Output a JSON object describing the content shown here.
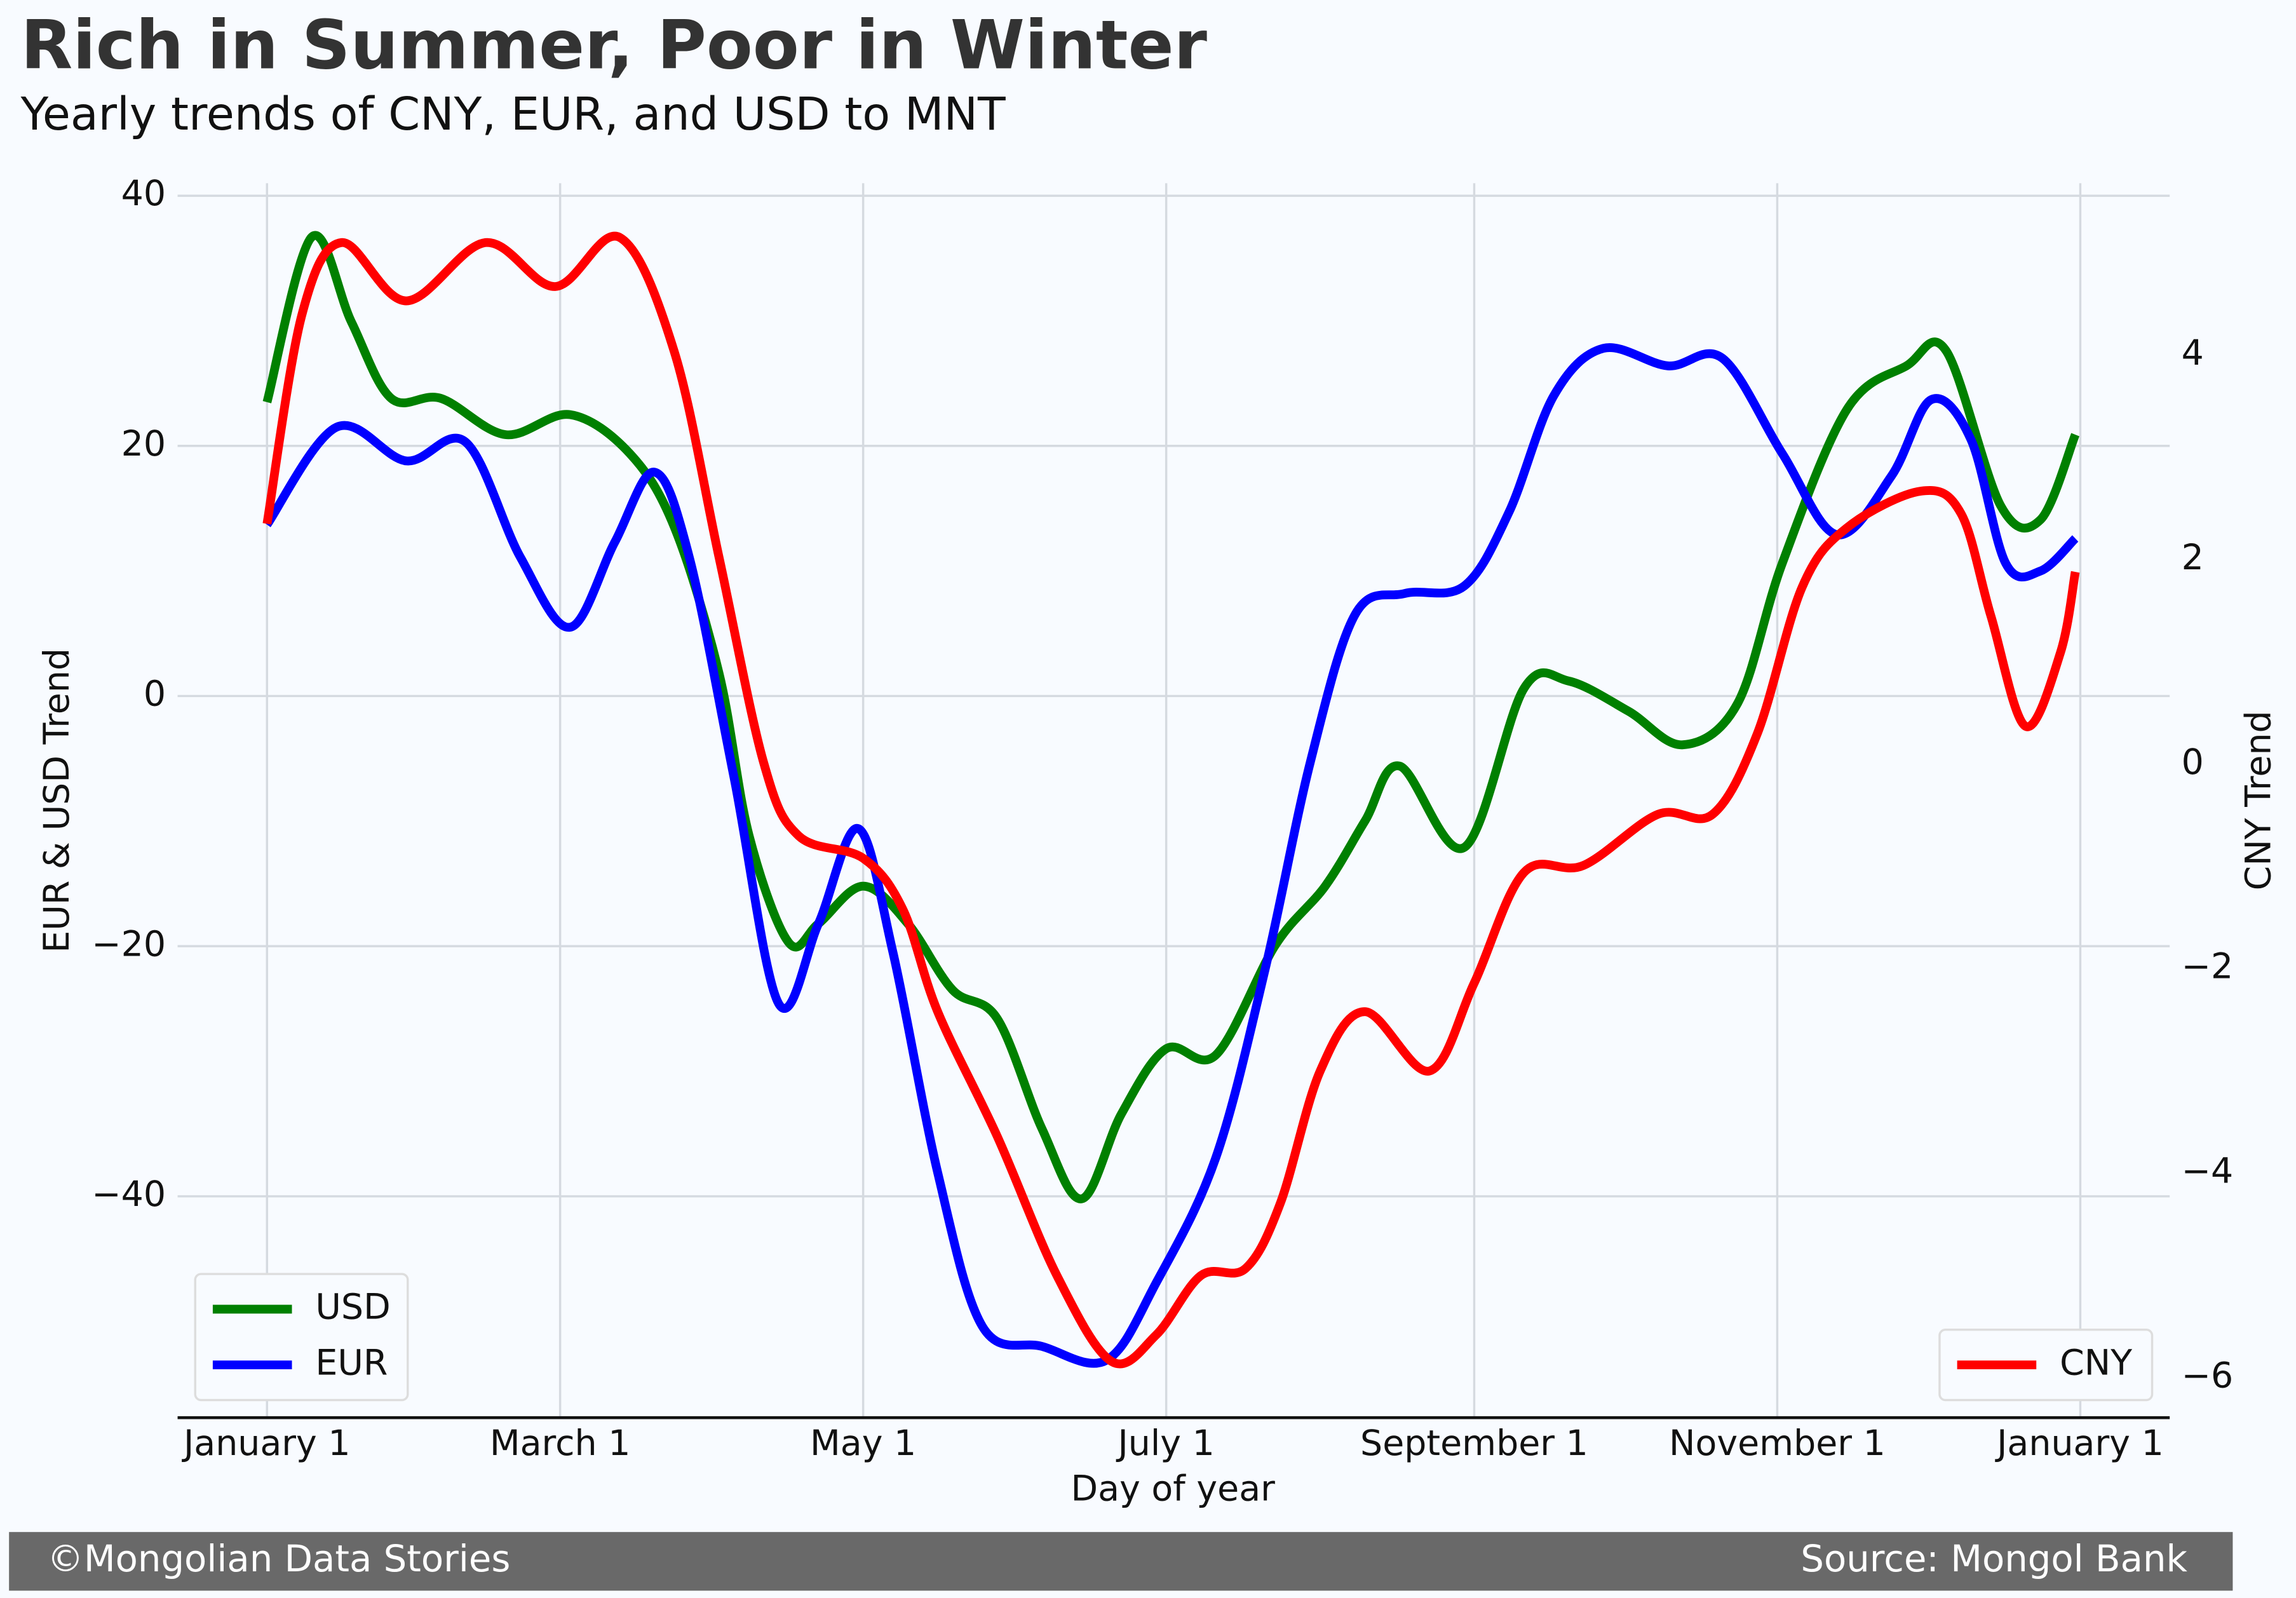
{
  "chart_data": {
    "type": "line",
    "title": "Rich in Summer, Poor in Winter",
    "subtitle": "Yearly trends of CNY, EUR, and USD to MNT",
    "xlabel": "Day of year",
    "ylabel": "EUR & USD Trend",
    "y2label": "CNY Trend",
    "footer_left": "©Mongolian Data Stories",
    "footer_right": "Source: Mongol Bank",
    "xlim": [
      -18,
      383
    ],
    "xticks": [
      {
        "value": 0,
        "label": "January 1"
      },
      {
        "value": 59,
        "label": "March 1"
      },
      {
        "value": 120,
        "label": "May 1"
      },
      {
        "value": 181,
        "label": "July 1"
      },
      {
        "value": 243,
        "label": "September 1"
      },
      {
        "value": 304,
        "label": "November 1"
      },
      {
        "value": 365,
        "label": "January 1"
      }
    ],
    "ylim": [
      -57.7,
      41
    ],
    "yticks": [
      {
        "value": -40,
        "label": "−40"
      },
      {
        "value": -20,
        "label": "−20"
      },
      0,
      20,
      40
    ],
    "y2lim": [
      -6.39,
      5.68
    ],
    "y2ticks": [
      {
        "value": -6,
        "label": "−6"
      },
      {
        "value": -4,
        "label": "−4"
      },
      {
        "value": -2,
        "label": "−2"
      },
      0,
      2,
      4
    ],
    "grid": true,
    "legend": "lower left",
    "legend2": "lower right",
    "series": [
      {
        "name": "USD",
        "color": "#008000",
        "x": [
          0,
          9,
          17,
          25,
          35,
          48,
          61,
          73,
          82,
          91,
          97,
          105,
          111,
          120,
          129,
          138,
          147,
          156,
          164,
          172,
          181,
          191,
          203,
          213,
          221,
          228,
          241,
          253,
          262,
          274,
          285,
          296,
          305,
          318,
          330,
          338,
          349,
          357,
          364
        ],
        "values": [
          23.5,
          36.7,
          29.9,
          23.8,
          23.8,
          20.9,
          22.5,
          19.4,
          13.5,
          1.8,
          -11.1,
          -19.7,
          -18.2,
          -15.2,
          -18.2,
          -23.5,
          -25.8,
          -34.6,
          -40.2,
          -33.4,
          -28.2,
          -28.7,
          -19.9,
          -15.2,
          -10.0,
          -5.6,
          -12.1,
          0.6,
          1.2,
          -1.2,
          -3.9,
          -0.6,
          10.6,
          22.9,
          26.4,
          27.6,
          15.2,
          14.1,
          20.9
        ]
      },
      {
        "name": "EUR",
        "color": "#0000ff",
        "x": [
          0,
          14,
          28,
          40,
          51,
          61,
          70,
          78,
          85,
          94,
          103,
          111,
          119,
          126,
          135,
          144,
          156,
          169,
          179,
          191,
          201,
          210,
          219,
          229,
          241,
          250,
          259,
          269,
          282,
          293,
          305,
          316,
          327,
          335,
          343,
          350,
          357,
          364
        ],
        "values": [
          13.7,
          21.5,
          18.8,
          20.3,
          11.1,
          5.5,
          12.3,
          17.9,
          11.1,
          -6.5,
          -24.6,
          -18.2,
          -10.6,
          -20.5,
          -38.1,
          -50.4,
          -52.0,
          -53.1,
          -46.9,
          -36.9,
          -21.7,
          -5.3,
          6.5,
          8.2,
          8.8,
          14.7,
          24.0,
          27.8,
          26.4,
          27.0,
          19.4,
          12.9,
          17.6,
          23.7,
          20.5,
          10.6,
          10.0,
          12.6
        ]
      },
      {
        "name": "CNY",
        "color": "#ff0000",
        "axis": "y2",
        "x": [
          0,
          7,
          15,
          28,
          44,
          58,
          71,
          82,
          91,
          100,
          107,
          120,
          128,
          135,
          147,
          159,
          170,
          179,
          188,
          197,
          204,
          212,
          221,
          234,
          243,
          253,
          265,
          280,
          291,
          300,
          309,
          318,
          333,
          341,
          347,
          354,
          361,
          364
        ],
        "values": [
          2.35,
          4.39,
          5.1,
          4.53,
          5.1,
          4.67,
          5.15,
          4.03,
          2.02,
          0.01,
          -0.7,
          -0.92,
          -1.42,
          -2.42,
          -3.64,
          -5.0,
          -5.84,
          -5.58,
          -5.0,
          -4.93,
          -4.29,
          -3.0,
          -2.42,
          -3.0,
          -2.14,
          -1.06,
          -0.99,
          -0.49,
          -0.49,
          0.3,
          1.73,
          2.31,
          2.67,
          2.45,
          1.45,
          0.37,
          1.09,
          1.88
        ]
      }
    ]
  }
}
